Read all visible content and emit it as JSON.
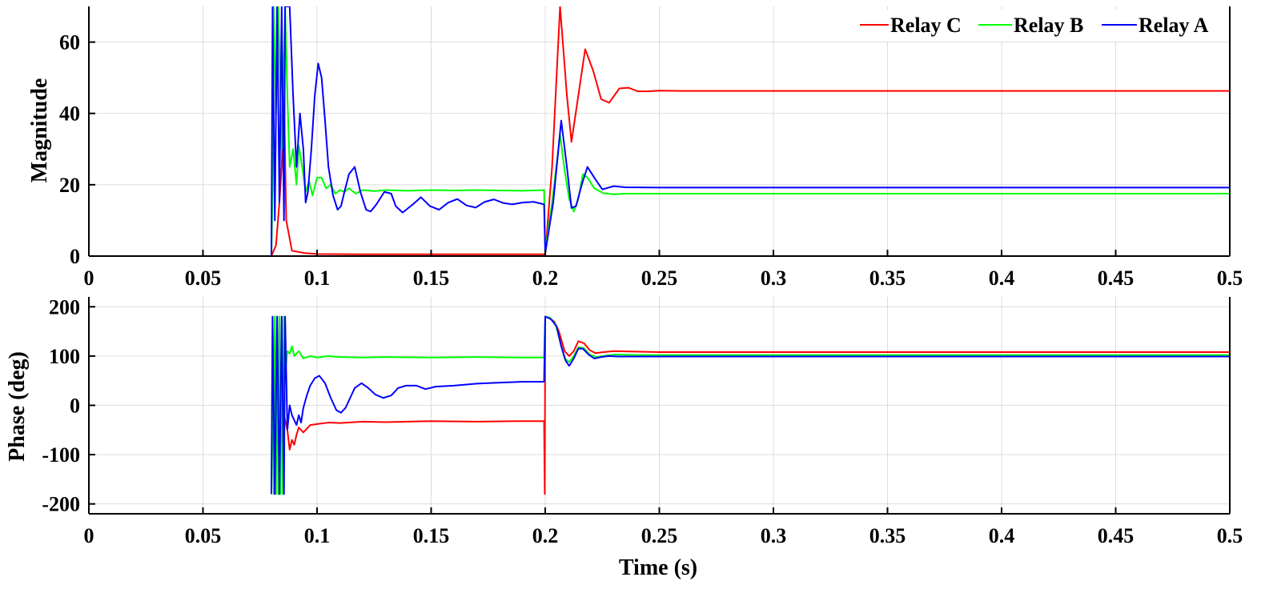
{
  "chart_data": [
    {
      "type": "line",
      "panel": "magnitude",
      "ylabel": "Magnitude",
      "xlabel": "",
      "xlim": [
        0,
        0.5
      ],
      "ylim": [
        0,
        70
      ],
      "xticks": [
        0,
        0.05,
        0.1,
        0.15,
        0.2,
        0.25,
        0.3,
        0.35,
        0.4,
        0.45,
        0.5
      ],
      "xtick_labels": [
        "0",
        "0.05",
        "0.1",
        "0.15",
        "0.2",
        "0.25",
        "0.3",
        "0.35",
        "0.4",
        "0.45",
        "0.5"
      ],
      "yticks": [
        0,
        20,
        40,
        60
      ],
      "ytick_labels": [
        "0",
        "20",
        "40",
        "60"
      ],
      "grid": true,
      "legend_position": "top-right",
      "series": [
        {
          "name": "Relay C",
          "color": "#ff0000",
          "x": [
            0,
            0.08,
            0.082,
            0.0835,
            0.0845,
            0.0855,
            0.0865,
            0.089,
            0.095,
            0.1,
            0.12,
            0.15,
            0.1995,
            0.2,
            0.203,
            0.2065,
            0.2095,
            0.2115,
            0.2145,
            0.2175,
            0.221,
            0.2245,
            0.228,
            0.2325,
            0.2365,
            0.2405,
            0.245,
            0.25,
            0.26,
            0.3,
            0.35,
            0.4,
            0.45,
            0.5
          ],
          "y": [
            0,
            0,
            3,
            15,
            25,
            45,
            10,
            1.5,
            0.8,
            0.6,
            0.5,
            0.5,
            0.5,
            0.5,
            25,
            70,
            45,
            32,
            45,
            58,
            52,
            44,
            43,
            47,
            47.2,
            46.2,
            46.2,
            46.4,
            46.3,
            46.3,
            46.3,
            46.3,
            46.3,
            46.3
          ]
        },
        {
          "name": "Relay B",
          "color": "#00ff00",
          "x": [
            0,
            0.08,
            0.0805,
            0.081,
            0.082,
            0.083,
            0.0845,
            0.086,
            0.087,
            0.088,
            0.0895,
            0.091,
            0.092,
            0.0935,
            0.095,
            0.0965,
            0.098,
            0.1,
            0.102,
            0.104,
            0.106,
            0.108,
            0.11,
            0.112,
            0.114,
            0.117,
            0.12,
            0.125,
            0.13,
            0.14,
            0.15,
            0.16,
            0.17,
            0.18,
            0.19,
            0.1995,
            0.2,
            0.203,
            0.2065,
            0.2085,
            0.2105,
            0.2125,
            0.2145,
            0.2165,
            0.2185,
            0.2215,
            0.2255,
            0.23,
            0.235,
            0.25,
            0.3,
            0.4,
            0.5
          ],
          "y": [
            0,
            0,
            18,
            70,
            40,
            70,
            30,
            70,
            45,
            25,
            30,
            20,
            31,
            25,
            18,
            21,
            17,
            22,
            22,
            19,
            20,
            17.5,
            18.5,
            18,
            19,
            17.5,
            18.5,
            18.2,
            18.5,
            18.3,
            18.5,
            18.4,
            18.5,
            18.4,
            18.3,
            18.5,
            1.5,
            15,
            34,
            24,
            16,
            12.5,
            16,
            23,
            22,
            19,
            17.6,
            17.3,
            17.5,
            17.5,
            17.5,
            17.5,
            17.5
          ]
        },
        {
          "name": "Relay A",
          "color": "#0000ff",
          "x": [
            0,
            0.08,
            0.0805,
            0.0815,
            0.0825,
            0.0835,
            0.0845,
            0.0855,
            0.086,
            0.087,
            0.088,
            0.0895,
            0.091,
            0.0925,
            0.094,
            0.095,
            0.096,
            0.0975,
            0.099,
            0.1005,
            0.102,
            0.1035,
            0.105,
            0.107,
            0.109,
            0.1105,
            0.112,
            0.114,
            0.1165,
            0.119,
            0.1215,
            0.1235,
            0.126,
            0.1295,
            0.1325,
            0.1345,
            0.1375,
            0.142,
            0.1455,
            0.1495,
            0.1535,
            0.1575,
            0.1615,
            0.1655,
            0.1695,
            0.1735,
            0.1775,
            0.1815,
            0.1855,
            0.19,
            0.195,
            0.1995,
            0.2,
            0.2035,
            0.207,
            0.2095,
            0.2115,
            0.2135,
            0.216,
            0.2185,
            0.2215,
            0.225,
            0.23,
            0.235,
            0.25,
            0.3,
            0.4,
            0.5
          ],
          "y": [
            0,
            0,
            70,
            10,
            70,
            15,
            70,
            10,
            70,
            70,
            70,
            45,
            25,
            40,
            30,
            15,
            18,
            30,
            45,
            54,
            50,
            38,
            25,
            17,
            13,
            14,
            18,
            23,
            25,
            18,
            13,
            12.5,
            14.5,
            18,
            17.5,
            14,
            12.2,
            14.5,
            16.5,
            14,
            13,
            15,
            16,
            14.2,
            13.6,
            15.2,
            15.9,
            14.9,
            14.5,
            15,
            15.2,
            14.5,
            0.8,
            15,
            38,
            25,
            13.5,
            14,
            20,
            25,
            22,
            18.7,
            19.6,
            19.3,
            19.2,
            19.2,
            19.2,
            19.2
          ]
        }
      ]
    },
    {
      "type": "line",
      "panel": "phase",
      "ylabel": "Phase (deg)",
      "xlabel": "Time (s)",
      "xlim": [
        0,
        0.5
      ],
      "ylim": [
        -220,
        220
      ],
      "xticks": [
        0,
        0.05,
        0.1,
        0.15,
        0.2,
        0.25,
        0.3,
        0.35,
        0.4,
        0.45,
        0.5
      ],
      "xtick_labels": [
        "0",
        "0.05",
        "0.1",
        "0.15",
        "0.2",
        "0.25",
        "0.3",
        "0.35",
        "0.4",
        "0.45",
        "0.5"
      ],
      "yticks": [
        -200,
        -100,
        0,
        100,
        200
      ],
      "ytick_labels": [
        "-200",
        "-100",
        "0",
        "100",
        "200"
      ],
      "grid": true,
      "series": [
        {
          "name": "Relay C",
          "color": "#ff0000",
          "x": [
            0.0855,
            0.087,
            0.088,
            0.089,
            0.09,
            0.091,
            0.092,
            0.094,
            0.097,
            0.1,
            0.105,
            0.11,
            0.12,
            0.13,
            0.15,
            0.17,
            0.19,
            0.1995,
            0.1998,
            0.2,
            0.2015,
            0.204,
            0.206,
            0.2085,
            0.2105,
            0.2125,
            0.2145,
            0.217,
            0.2195,
            0.222,
            0.2255,
            0.23,
            0.24,
            0.25,
            0.3,
            0.4,
            0.5
          ],
          "y": [
            -20,
            -50,
            -90,
            -70,
            -80,
            -60,
            -45,
            -55,
            -40,
            -38,
            -35,
            -36,
            -33,
            -34,
            -32,
            -33,
            -32,
            -32,
            -180,
            180,
            178,
            170,
            150,
            110,
            100,
            110,
            130,
            126,
            112,
            106,
            108,
            110,
            109,
            108,
            108,
            108,
            108
          ]
        },
        {
          "name": "Relay B",
          "color": "#00ff00",
          "x": [
            0.08,
            0.0805,
            0.081,
            0.0815,
            0.082,
            0.0825,
            0.083,
            0.0835,
            0.084,
            0.0845,
            0.085,
            0.0855,
            0.086,
            0.087,
            0.088,
            0.089,
            0.09,
            0.092,
            0.094,
            0.097,
            0.1,
            0.105,
            0.11,
            0.12,
            0.13,
            0.15,
            0.17,
            0.19,
            0.1995,
            0.2,
            0.202,
            0.2045,
            0.2065,
            0.2085,
            0.2105,
            0.2125,
            0.2145,
            0.217,
            0.2195,
            0.2225,
            0.2255,
            0.23,
            0.24,
            0.25,
            0.3,
            0.4,
            0.5
          ],
          "y": [
            -180,
            180,
            -180,
            180,
            -180,
            180,
            -180,
            180,
            -180,
            180,
            -180,
            180,
            60,
            110,
            105,
            120,
            100,
            110,
            95,
            100,
            97,
            100,
            98,
            97,
            98,
            97,
            98,
            97,
            97,
            180,
            178,
            165,
            130,
            95,
            88,
            100,
            118,
            116,
            103,
            98,
            100,
            103,
            102,
            102,
            102,
            102,
            102
          ]
        },
        {
          "name": "Relay A",
          "color": "#0000ff",
          "x": [
            0.08,
            0.0805,
            0.0815,
            0.0825,
            0.0835,
            0.0845,
            0.0855,
            0.086,
            0.087,
            0.088,
            0.089,
            0.09,
            0.091,
            0.092,
            0.093,
            0.094,
            0.0955,
            0.097,
            0.099,
            0.101,
            0.1035,
            0.106,
            0.1085,
            0.1105,
            0.1125,
            0.1145,
            0.1165,
            0.1195,
            0.1225,
            0.1255,
            0.129,
            0.1325,
            0.1355,
            0.139,
            0.1435,
            0.1475,
            0.152,
            0.16,
            0.17,
            0.18,
            0.19,
            0.1995,
            0.2,
            0.2025,
            0.205,
            0.207,
            0.209,
            0.2105,
            0.2125,
            0.2145,
            0.2165,
            0.219,
            0.2215,
            0.2245,
            0.228,
            0.232,
            0.24,
            0.25,
            0.3,
            0.4,
            0.5
          ],
          "y": [
            -180,
            180,
            -180,
            180,
            -180,
            180,
            -180,
            180,
            -50,
            0,
            -20,
            -30,
            -40,
            -20,
            -35,
            -5,
            20,
            40,
            55,
            60,
            45,
            15,
            -10,
            -15,
            -5,
            15,
            35,
            45,
            35,
            22,
            15,
            20,
            35,
            40,
            40,
            33,
            38,
            40,
            44,
            46,
            48,
            48,
            180,
            175,
            160,
            120,
            90,
            80,
            95,
            115,
            115,
            103,
            95,
            98,
            100,
            99,
            99,
            99,
            99,
            99,
            99
          ]
        }
      ]
    }
  ]
}
